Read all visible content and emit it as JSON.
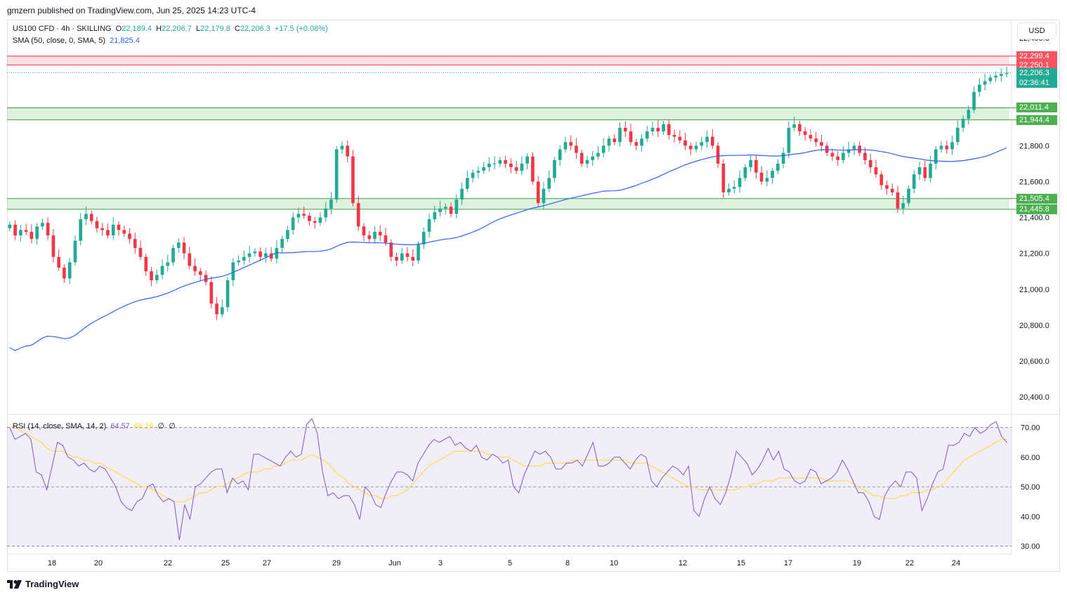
{
  "published": "gmzern published on TradingView.com, Jun 25, 2025 14:23 UTC-4",
  "footer_logo": "TradingView",
  "currency": "USD",
  "legend": {
    "symbol": "US100 CFD · 4h · SKILLING",
    "o_label": "O",
    "o": "22,189.4",
    "h_label": "H",
    "h": "22,206.7",
    "l_label": "L",
    "l": "22,179.8",
    "c_label": "C",
    "c": "22,206.3",
    "change": "+17.5 (+0.08%)",
    "sma_label": "SMA (50, close, 0, SMA, 5)",
    "sma_value": "21,825.4",
    "rsi_label": "RSI (14, close, SMA, 14, 2)",
    "rsi_value": "64.57",
    "rsi_sma_value": "66.18",
    "rsi_extra1": "∅",
    "rsi_extra2": "∅"
  },
  "price_tags": [
    {
      "text": "22,299.4",
      "color": "#f7525f",
      "value": 22299.4
    },
    {
      "text": "22,250.1",
      "color": "#f7525f",
      "value": 22250.1
    },
    {
      "text": "22,206.3",
      "color": "#22ab94",
      "value": 22206.3
    },
    {
      "text": "02:36:41",
      "color": "#22ab94",
      "value": 22150
    },
    {
      "text": "22,011.4",
      "color": "#4caf50",
      "value": 22011.4
    },
    {
      "text": "21,944.4",
      "color": "#4caf50",
      "value": 21944.4
    },
    {
      "text": "21,505.4",
      "color": "#4caf50",
      "value": 21505.4
    },
    {
      "text": "21,445.8",
      "color": "#4caf50",
      "value": 21445.8
    }
  ],
  "colors": {
    "up": "#22ab94",
    "down": "#f23645",
    "sma": "#2962ff",
    "rsi": "#7e57c2",
    "rsi_sma": "#fdd835",
    "resistance": "#f7525f",
    "support": "#4caf50"
  },
  "chart_data": [
    {
      "type": "candlestick",
      "title": "US100 CFD · 4h · SKILLING",
      "y_ticks": [
        "22,400.0",
        "21,800.0",
        "21,600.0",
        "21,400.0",
        "21,200.0",
        "21,000.0",
        "20,800.0",
        "20,600.0",
        "20,400.0"
      ],
      "y_tick_values": [
        22400,
        21800,
        21600,
        21400,
        21200,
        21000,
        20800,
        20600,
        20400
      ],
      "x_ticks": [
        "18",
        "20",
        "22",
        "25",
        "27",
        "29",
        "Jun",
        "3",
        "5",
        "8",
        "10",
        "12",
        "15",
        "17",
        "19",
        "22",
        "24"
      ],
      "ylim": [
        20310,
        22440
      ],
      "zones": [
        {
          "kind": "resistance",
          "low": 22250.1,
          "high": 22299.4
        },
        {
          "kind": "support",
          "low": 21944.4,
          "high": 22011.4
        },
        {
          "kind": "support",
          "low": 21445.8,
          "high": 21505.4
        }
      ],
      "last_price": 22206.3,
      "close_series": [
        21360,
        21300,
        21330,
        21320,
        21280,
        21350,
        21370,
        21300,
        21180,
        21120,
        21060,
        21150,
        21270,
        21390,
        21420,
        21380,
        21340,
        21330,
        21300,
        21360,
        21330,
        21310,
        21280,
        21230,
        21180,
        21100,
        21050,
        21080,
        21130,
        21150,
        21230,
        21260,
        21200,
        21130,
        21100,
        21080,
        21040,
        20920,
        20860,
        20900,
        21050,
        21150,
        21160,
        21180,
        21200,
        21210,
        21180,
        21200,
        21170,
        21230,
        21280,
        21330,
        21400,
        21420,
        21410,
        21380,
        21370,
        21400,
        21450,
        21500,
        21780,
        21800,
        21740,
        21480,
        21350,
        21300,
        21280,
        21320,
        21300,
        21260,
        21180,
        21160,
        21200,
        21180,
        21160,
        21250,
        21320,
        21390,
        21430,
        21450,
        21460,
        21420,
        21500,
        21560,
        21620,
        21650,
        21660,
        21680,
        21700,
        21700,
        21720,
        21700,
        21680,
        21660,
        21700,
        21740,
        21600,
        21480,
        21560,
        21620,
        21720,
        21780,
        21820,
        21800,
        21760,
        21700,
        21720,
        21740,
        21760,
        21800,
        21840,
        21820,
        21900,
        21880,
        21820,
        21800,
        21840,
        21880,
        21900,
        21880,
        21920,
        21860,
        21850,
        21830,
        21800,
        21780,
        21800,
        21820,
        21850,
        21800,
        21700,
        21540,
        21560,
        21570,
        21620,
        21680,
        21720,
        21650,
        21600,
        21620,
        21660,
        21700,
        21760,
        21900,
        21920,
        21880,
        21860,
        21840,
        21820,
        21800,
        21760,
        21740,
        21720,
        21760,
        21780,
        21800,
        21760,
        21720,
        21680,
        21640,
        21580,
        21560,
        21540,
        21450,
        21480,
        21560,
        21640,
        21680,
        21620,
        21700,
        21780,
        21800,
        21780,
        21820,
        21900,
        21950,
        22000,
        22100,
        22140,
        22160,
        22180,
        22190,
        22200,
        22206
      ]
    },
    {
      "type": "line",
      "title": "RSI (14, close, SMA, 14, 2)",
      "y_ticks": [
        "70.00",
        "60.00",
        "50.00",
        "40.00",
        "30.00"
      ],
      "y_tick_values": [
        70,
        60,
        50,
        40,
        30
      ],
      "ylim": [
        28,
        73
      ],
      "levels": [
        70,
        50,
        30
      ],
      "series": [
        {
          "values": [
            70,
            66,
            67,
            68,
            66,
            55,
            54,
            49,
            57,
            65,
            64,
            60,
            59,
            57,
            58,
            56,
            55,
            57,
            56,
            53,
            50,
            45,
            43,
            42,
            45,
            46,
            50,
            51,
            47,
            45,
            46,
            45,
            32,
            44,
            39,
            50,
            51,
            53,
            55,
            56,
            56,
            48,
            53,
            51,
            52,
            49,
            61,
            61,
            60,
            59,
            58,
            57,
            60,
            62,
            60,
            61,
            71,
            73,
            68,
            55,
            47,
            48,
            46,
            47,
            47,
            44,
            39,
            50,
            48,
            44,
            43,
            48,
            52,
            55,
            55,
            54,
            52,
            58,
            61,
            64,
            66,
            65,
            66,
            67,
            64,
            65,
            63,
            62,
            64,
            60,
            59,
            61,
            60,
            58,
            59,
            50,
            48,
            54,
            58,
            62,
            61,
            62,
            60,
            56,
            56,
            58,
            58,
            59,
            57,
            61,
            65,
            57,
            57,
            58,
            60,
            60,
            58,
            56,
            59,
            61,
            60,
            52,
            50,
            53,
            55,
            57,
            56,
            54,
            57,
            42,
            40,
            46,
            50,
            46,
            44,
            48,
            54,
            62,
            60,
            58,
            54,
            56,
            59,
            63,
            59,
            62,
            56,
            55,
            52,
            51,
            52,
            56,
            55,
            51,
            52,
            53,
            55,
            59,
            56,
            52,
            48,
            48,
            45,
            40,
            39,
            47,
            50,
            52,
            50,
            55,
            55,
            53,
            42,
            46,
            51,
            55,
            56,
            64,
            64,
            65,
            68,
            67,
            70,
            68,
            69,
            71,
            72,
            67,
            65
          ],
          "name": ""
        },
        {
          "values": [
            71,
            70,
            69,
            68,
            67,
            66,
            65,
            63,
            62,
            62,
            62,
            61,
            60,
            60,
            59,
            59,
            58,
            58,
            57,
            56,
            55,
            54,
            53,
            52,
            51,
            50,
            50,
            49,
            48,
            47,
            46,
            45,
            45,
            45,
            46,
            47,
            48,
            48,
            49,
            50,
            50,
            51,
            52,
            53,
            54,
            55,
            55,
            55,
            56,
            56,
            57,
            57,
            58,
            59,
            59,
            59,
            60,
            61,
            60,
            59,
            58,
            56,
            54,
            53,
            51,
            50,
            49,
            48,
            47,
            47,
            46,
            46,
            47,
            47,
            48,
            49,
            51,
            53,
            55,
            57,
            58,
            59,
            60,
            61,
            62,
            62,
            62,
            62,
            62,
            62,
            61,
            61,
            60,
            60,
            60,
            59,
            58,
            57,
            57,
            57,
            57,
            58,
            58,
            58,
            58,
            58,
            59,
            59,
            59,
            59,
            59,
            59,
            59,
            59,
            59,
            59,
            59,
            58,
            58,
            58,
            58,
            57,
            56,
            55,
            54,
            53,
            52,
            51,
            50,
            50,
            49,
            49,
            49,
            49,
            49,
            49,
            49,
            49,
            50,
            50,
            51,
            51,
            52,
            52,
            52,
            53,
            53,
            53,
            53,
            53,
            53,
            53,
            53,
            53,
            52,
            52,
            52,
            52,
            52,
            51,
            50,
            49,
            48,
            47,
            47,
            46,
            46,
            46,
            47,
            47,
            48,
            48,
            48,
            49,
            49,
            50,
            51,
            53,
            55,
            57,
            59,
            60,
            61,
            62,
            63,
            64,
            65,
            66,
            66
          ],
          "name": ""
        }
      ]
    }
  ]
}
